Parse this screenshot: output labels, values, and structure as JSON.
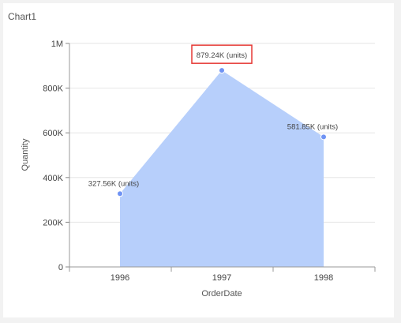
{
  "panel": {
    "title": "Chart1"
  },
  "chart_data": {
    "type": "area",
    "x": [
      "1996",
      "1997",
      "1998"
    ],
    "series": [
      {
        "values": [
          327560,
          879240,
          581850
        ],
        "labels": [
          "327.56K (units)",
          "879.24K (units)",
          "581.85K (units)"
        ]
      }
    ],
    "y_ticks": [
      0,
      200000,
      400000,
      600000,
      800000,
      1000000
    ],
    "y_tick_labels": [
      "0",
      "200K",
      "400K",
      "600K",
      "800K",
      "1M"
    ],
    "ylim": [
      0,
      1000000
    ],
    "xlabel": "OrderDate",
    "ylabel": "Quantity",
    "grid": true,
    "highlighted_label_index": 1,
    "colors": {
      "fill": "#b7cffb",
      "marker": "#6f93f4",
      "grid": "#e6e6e6",
      "highlight": "#e53935"
    }
  }
}
